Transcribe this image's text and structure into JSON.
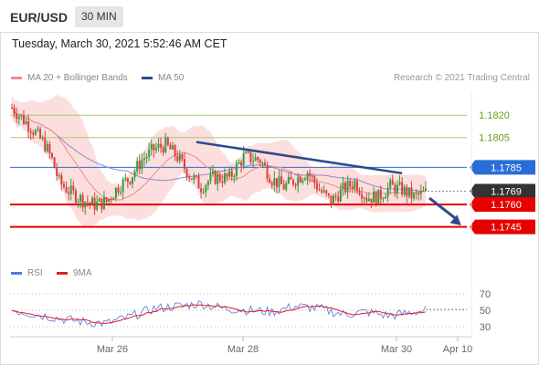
{
  "header": {
    "symbol": "EUR/USD",
    "timeframe": "30 MIN"
  },
  "datetime": "Tuesday, March 30, 2021 5:52:46 AM CET",
  "legend": {
    "items": [
      {
        "label": "MA 20 + Bollinger Bands",
        "color": "#f08a8a"
      },
      {
        "label": "MA 50",
        "color": "#2e4a8c"
      }
    ],
    "credit": "Research © 2021 Trading Central"
  },
  "rsi_legend": {
    "items": [
      {
        "label": "RSI",
        "color": "#5577dd"
      },
      {
        "label": "9MA",
        "color": "#e02020"
      }
    ]
  },
  "colors": {
    "up": "#3a9a3a",
    "down": "#d94040",
    "bb": "#fcdede",
    "ma20": "#f08a8a",
    "ma50": "#8c8cc8",
    "trend": "#2e4a8c",
    "target": "#e60000",
    "green_level": "#a8cc70",
    "blue_level": "#2a6dd8",
    "label_dark": "#333333"
  },
  "chart_data": {
    "type": "candlestick",
    "instrument": "EUR/USD",
    "timeframe": "30 MIN",
    "ylim": [
      1.1735,
      1.1833
    ],
    "x_ticks": [
      "Mar 26",
      "Mar 28",
      "Mar 30",
      "Apr 10"
    ],
    "levels": [
      {
        "value": 1.182,
        "label": "1.1820",
        "style": "green"
      },
      {
        "value": 1.1805,
        "label": "1.1805",
        "style": "green"
      },
      {
        "value": 1.1785,
        "label": "1.1785",
        "style": "blue"
      },
      {
        "value": 1.1769,
        "label": "1.1769",
        "style": "current"
      },
      {
        "value": 1.176,
        "label": "1.1760",
        "style": "red"
      },
      {
        "value": 1.1745,
        "label": "1.1745",
        "style": "red"
      }
    ],
    "price_anchors": [
      [
        0,
        1.1825
      ],
      [
        3,
        1.182
      ],
      [
        8,
        1.1812
      ],
      [
        14,
        1.18
      ],
      [
        17,
        1.179
      ],
      [
        20,
        1.1775
      ],
      [
        25,
        1.1768
      ],
      [
        30,
        1.1763
      ],
      [
        35,
        1.176
      ],
      [
        40,
        1.1762
      ],
      [
        45,
        1.1772
      ],
      [
        50,
        1.1778
      ],
      [
        55,
        1.179
      ],
      [
        60,
        1.1797
      ],
      [
        65,
        1.18
      ],
      [
        70,
        1.1792
      ],
      [
        75,
        1.178
      ],
      [
        80,
        1.1772
      ],
      [
        85,
        1.1778
      ],
      [
        92,
        1.1778
      ],
      [
        98,
        1.1792
      ],
      [
        105,
        1.179
      ],
      [
        110,
        1.1777
      ],
      [
        115,
        1.1772
      ],
      [
        120,
        1.1777
      ],
      [
        125,
        1.1782
      ],
      [
        130,
        1.177
      ],
      [
        135,
        1.1762
      ],
      [
        140,
        1.177
      ],
      [
        145,
        1.1775
      ],
      [
        150,
        1.1765
      ],
      [
        155,
        1.1765
      ],
      [
        160,
        1.1772
      ],
      [
        165,
        1.177
      ],
      [
        170,
        1.1765
      ],
      [
        175,
        1.1768
      ]
    ],
    "trendline": {
      "from": [
        78,
        1.1802
      ],
      "to": [
        165,
        1.1781
      ]
    },
    "forecast_arrow": {
      "from": [
        175,
        1.1768
      ],
      "to": [
        190,
        1.1746
      ]
    },
    "rsi": {
      "ticks": [
        70,
        50,
        30
      ],
      "anchors": [
        [
          0,
          50
        ],
        [
          10,
          45
        ],
        [
          20,
          40
        ],
        [
          30,
          36
        ],
        [
          40,
          34
        ],
        [
          50,
          42
        ],
        [
          60,
          52
        ],
        [
          70,
          55
        ],
        [
          80,
          58
        ],
        [
          90,
          52
        ],
        [
          100,
          50
        ],
        [
          110,
          48
        ],
        [
          120,
          55
        ],
        [
          130,
          52
        ],
        [
          140,
          45
        ],
        [
          150,
          48
        ],
        [
          160,
          43
        ],
        [
          170,
          48
        ],
        [
          175,
          50
        ]
      ]
    }
  }
}
